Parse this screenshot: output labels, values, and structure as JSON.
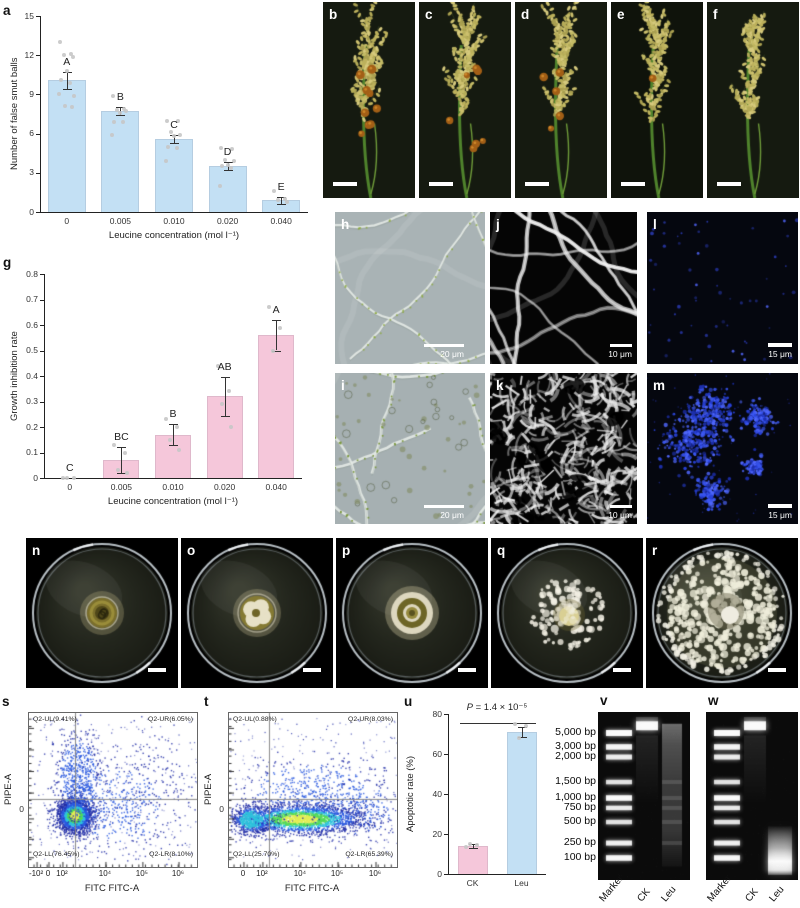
{
  "figure": {
    "panel_letters": [
      "a",
      "b",
      "c",
      "d",
      "e",
      "f",
      "g",
      "h",
      "i",
      "j",
      "k",
      "l",
      "m",
      "n",
      "o",
      "p",
      "q",
      "r",
      "s",
      "t",
      "u",
      "v",
      "w"
    ]
  },
  "chart_data": [
    {
      "id": "a",
      "type": "bar",
      "categories": [
        "0",
        "0.005",
        "0.010",
        "0.020",
        "0.040"
      ],
      "values": [
        10.1,
        7.7,
        5.6,
        3.5,
        0.9
      ],
      "errors": [
        0.65,
        0.3,
        0.3,
        0.3,
        0.25
      ],
      "sig_letters": [
        "A",
        "B",
        "C",
        "D",
        "E"
      ],
      "points": [
        [
          13,
          12.1,
          12,
          11.9,
          10.8,
          10.1,
          9.9,
          9,
          8.9,
          8.1,
          8
        ],
        [
          8.9,
          7.9,
          7.8,
          7.7,
          7.6,
          6.9,
          6.9,
          5.9
        ],
        [
          7,
          7,
          6.1,
          5.9,
          5.8,
          5,
          4.9,
          3.9
        ],
        [
          4.9,
          4.8,
          4,
          3.9,
          3.6,
          3.5,
          3.4,
          2
        ],
        [
          1.6,
          1,
          0.9,
          0.8
        ]
      ],
      "xlabel": "Leucine concentration (mol l⁻¹)",
      "ylabel": "Number of false smut balls",
      "ylim": [
        0,
        15
      ],
      "yticks": [
        0,
        3,
        6,
        9,
        12,
        15
      ],
      "ytick_labels": [
        "0",
        "3",
        "6",
        "9",
        "12",
        "15"
      ],
      "bar_color": "#c3e0f4",
      "grid": false,
      "legend": "none"
    },
    {
      "id": "g",
      "type": "bar",
      "categories": [
        "0",
        "0.005",
        "0.010",
        "0.020",
        "0.040"
      ],
      "values": [
        0,
        0.07,
        0.17,
        0.32,
        0.56
      ],
      "errors": [
        0,
        0.05,
        0.04,
        0.075,
        0.06
      ],
      "sig_letters": [
        "C",
        "BC",
        "B",
        "AB",
        "A"
      ],
      "points": [
        [
          0,
          0,
          0
        ],
        [
          0.13,
          0.1,
          0.03,
          0.02
        ],
        [
          0.23,
          0.2,
          0.15,
          0.11
        ],
        [
          0.44,
          0.34,
          0.29,
          0.2
        ],
        [
          0.67,
          0.59,
          0.5
        ]
      ],
      "xlabel": "Leucine concentration (mol l⁻¹)",
      "ylabel": "Growth inhibition rate",
      "ylim": [
        0,
        0.8
      ],
      "yticks": [
        0,
        0.1,
        0.2,
        0.3,
        0.4,
        0.5,
        0.6,
        0.7,
        0.8
      ],
      "ytick_labels": [
        "0",
        "0.1",
        "0.2",
        "0.3",
        "0.4",
        "0.5",
        "0.6",
        "0.7",
        "0.8"
      ],
      "bar_color": "#f5c7da",
      "grid": false,
      "legend": "none"
    },
    {
      "id": "s",
      "type": "scatter",
      "xlabel": "FITC FITC-A",
      "ylabel": "PIPE-A",
      "xtick_labels": [
        "-10²",
        "0",
        "10²",
        "10⁴",
        "10⁵",
        "10⁶"
      ],
      "ytick_labels": [
        "0"
      ],
      "quadrants": {
        "ul": "Q2-UL(9.41%)",
        "ur": "Q2-UR(6.05%)",
        "ll": "Q2-LL(76.45%)",
        "lr": "Q2-LR(8.10%)"
      }
    },
    {
      "id": "t",
      "type": "scatter",
      "xlabel": "FITC FITC-A",
      "ylabel": "PIPE-A",
      "xtick_labels": [
        "0",
        "10²",
        "10⁴",
        "10⁵",
        "10⁶"
      ],
      "ytick_labels": [
        "0"
      ],
      "quadrants": {
        "ul": "Q2-UL(0.88%)",
        "ur": "Q2-UR(8.03%)",
        "ll": "Q2-LL(25.70%)",
        "lr": "Q2-LR(65.39%)"
      }
    },
    {
      "id": "u",
      "type": "bar",
      "categories": [
        "CK",
        "Leu"
      ],
      "values": [
        14,
        71
      ],
      "errors": [
        1.2,
        2.5
      ],
      "points": [
        [
          13.5,
          14.5,
          15
        ],
        [
          75,
          74,
          68
        ]
      ],
      "bar_colors": [
        "#f5c7da",
        "#c3e0f4"
      ],
      "ylabel": "Apoptotic rate (%)",
      "ylim": [
        0,
        80
      ],
      "yticks": [
        0,
        20,
        40,
        60,
        80
      ],
      "ytick_labels": [
        "0",
        "20",
        "40",
        "60",
        "80"
      ],
      "p_label": "P",
      "p_value": " = 1.4 × 10⁻⁵",
      "grid": false,
      "legend": "none"
    }
  ],
  "micrographs": {
    "h": {
      "scale": "20 μm"
    },
    "i": {
      "scale": "20 μm"
    },
    "j": {
      "scale": "10 μm"
    },
    "k": {
      "scale": "10 μm"
    },
    "l": {
      "scale": "15 μm"
    },
    "m": {
      "scale": "15 μm"
    }
  },
  "gels": {
    "marker_labels": [
      "5,000 bp",
      "3,000 bp",
      "2,000 bp",
      "1,500 bp",
      "1,000 bp",
      "750 bp",
      "500 bp",
      "250 bp",
      "100 bp"
    ],
    "lane_labels": [
      "Marker",
      "CK",
      "Leu"
    ]
  },
  "colors": {
    "bar_blue": "#c3e0f4",
    "bar_pink": "#f5c7da",
    "point_gray": "#c6c6c6"
  }
}
